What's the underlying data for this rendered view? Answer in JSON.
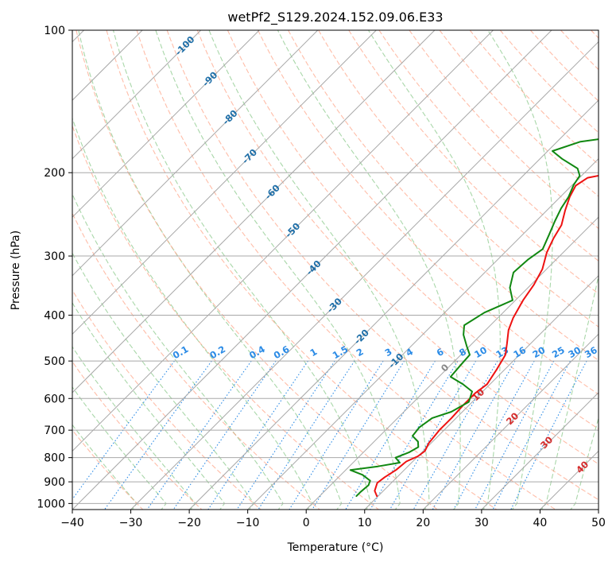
{
  "chart_data": {
    "type": "line",
    "subtype": "skew-T log-P diagram",
    "title": "wetPf2_S129.2024.152.09.06.E33",
    "xlabel": "Temperature (°C)",
    "ylabel": "Pressure (hPa)",
    "xlim": [
      -40,
      50
    ],
    "ylim": [
      1030,
      100
    ],
    "yscale": "log",
    "grid": true,
    "x_ticks": [
      -40,
      -30,
      -20,
      -10,
      0,
      10,
      20,
      30,
      40,
      50
    ],
    "y_ticks": [
      100,
      200,
      300,
      400,
      500,
      600,
      700,
      800,
      900,
      1000
    ],
    "colors": {
      "temperature": "#ee1111",
      "dewpoint": "#118811",
      "isotherm_label": "#1f6fa8",
      "mixing_ratio": "#2b8be6",
      "moist_adiabat_label": "#d42a2a",
      "zero_label": "#888888",
      "dry_adiabat": "#ff9a7a",
      "moist_adiabat": "#8cc98c",
      "grid": "#a8a8a8"
    },
    "series": [
      {
        "key": "temperature",
        "color": "#ee1111",
        "points": [
          [
            9.8,
            965
          ],
          [
            8.5,
            940
          ],
          [
            7.6,
            905
          ],
          [
            7.9,
            880
          ],
          [
            8.6,
            850
          ],
          [
            8.9,
            815
          ],
          [
            10.0,
            795
          ],
          [
            10.3,
            775
          ],
          [
            9.6,
            745
          ],
          [
            9.2,
            700
          ],
          [
            9.2,
            660
          ],
          [
            9.0,
            620
          ],
          [
            9.0,
            585
          ],
          [
            9.5,
            560
          ],
          [
            8.6,
            520
          ],
          [
            7.6,
            485
          ],
          [
            6.0,
            460
          ],
          [
            3.9,
            430
          ],
          [
            2.6,
            405
          ],
          [
            1.3,
            372
          ],
          [
            0.5,
            345
          ],
          [
            -0.7,
            320
          ],
          [
            -2.8,
            295
          ],
          [
            -4.1,
            275
          ],
          [
            -5.0,
            258
          ],
          [
            -6.9,
            240
          ],
          [
            -8.4,
            225
          ],
          [
            -9.3,
            213
          ],
          [
            -8.6,
            205
          ],
          [
            -4.2,
            199
          ],
          [
            1.3,
            194
          ],
          [
            6.7,
            186
          ],
          [
            10.0,
            178
          ],
          [
            12.5,
            170
          ],
          [
            13.8,
            162
          ],
          [
            17.1,
            155
          ],
          [
            18.3,
            148
          ],
          [
            19.0,
            142
          ],
          [
            19.9,
            135
          ],
          [
            20.5,
            127
          ],
          [
            19.6,
            120
          ],
          [
            19.5,
            116
          ],
          [
            20.6,
            111
          ],
          [
            22.6,
            105
          ],
          [
            22.9,
            100
          ]
        ]
      },
      {
        "key": "dewpoint",
        "color": "#118811",
        "points": [
          [
            6.3,
            965
          ],
          [
            6.3,
            945
          ],
          [
            6.5,
            915
          ],
          [
            6.0,
            895
          ],
          [
            3.7,
            870
          ],
          [
            0.8,
            850
          ],
          [
            4.9,
            835
          ],
          [
            8.0,
            820
          ],
          [
            6.4,
            800
          ],
          [
            7.8,
            780
          ],
          [
            8.5,
            760
          ],
          [
            7.5,
            740
          ],
          [
            5.6,
            720
          ],
          [
            5.3,
            690
          ],
          [
            5.9,
            660
          ],
          [
            8.1,
            640
          ],
          [
            9.4,
            610
          ],
          [
            8.2,
            580
          ],
          [
            5.4,
            560
          ],
          [
            2.0,
            540
          ],
          [
            1.7,
            510
          ],
          [
            1.5,
            485
          ],
          [
            -0.5,
            465
          ],
          [
            -3.0,
            440
          ],
          [
            -4.5,
            420
          ],
          [
            -3.2,
            395
          ],
          [
            -0.5,
            372
          ],
          [
            -3.1,
            350
          ],
          [
            -5.1,
            325
          ],
          [
            -4.8,
            305
          ],
          [
            -4.1,
            290
          ],
          [
            -5.5,
            270
          ],
          [
            -6.8,
            253
          ],
          [
            -7.9,
            238
          ],
          [
            -8.6,
            225
          ],
          [
            -9.8,
            212
          ],
          [
            -10.3,
            203
          ],
          [
            -11.9,
            196
          ],
          [
            -16.2,
            187
          ],
          [
            -19.2,
            180
          ],
          [
            -16.0,
            172
          ],
          [
            -8.0,
            166
          ],
          [
            -3.5,
            158
          ],
          [
            -4.6,
            150
          ],
          [
            -7.3,
            144
          ],
          [
            -9.0,
            138
          ],
          [
            -11.2,
            131
          ],
          [
            -10.5,
            125
          ],
          [
            -7.3,
            119
          ],
          [
            -4.8,
            113
          ],
          [
            -2.7,
            107
          ],
          [
            -1.5,
            102
          ],
          [
            -0.9,
            100
          ]
        ]
      }
    ],
    "isotherm_labels": [
      "-100",
      "-90",
      "-80",
      "-70",
      "-60",
      "-50",
      "-40",
      "-30",
      "-20",
      "-10"
    ],
    "mixing_ratio_labels": [
      "0.1",
      "0.2",
      "0.4",
      "0.6",
      "1",
      "1.5",
      "2",
      "3",
      "4",
      "6",
      "8",
      "10",
      "13",
      "16",
      "20",
      "25",
      "30",
      "36"
    ],
    "moist_adiabat_labels": [
      "0",
      "10",
      "20",
      "30",
      "40"
    ]
  }
}
